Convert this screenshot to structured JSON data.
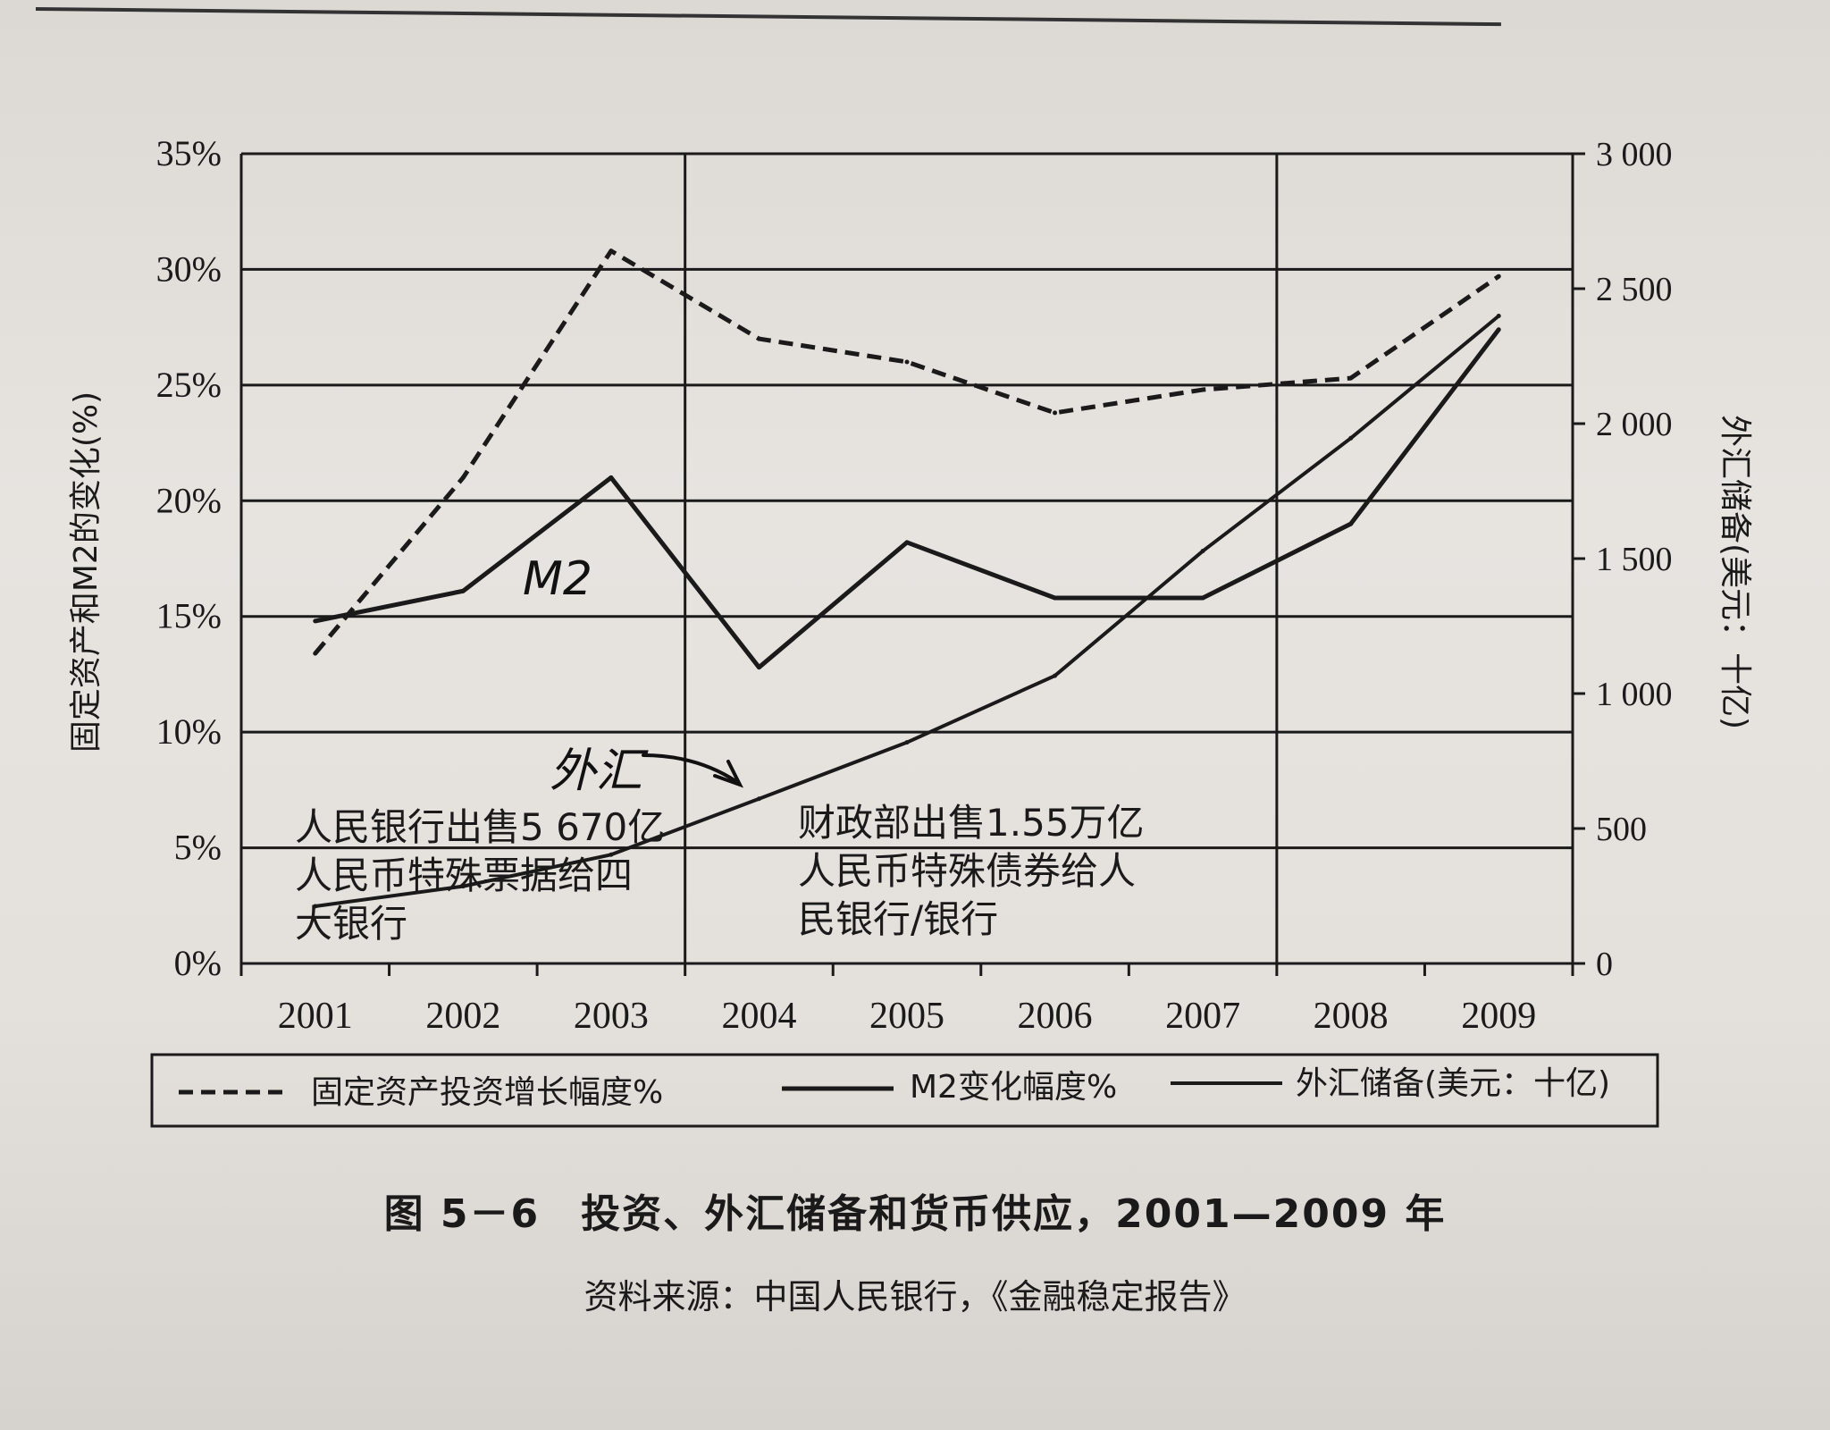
{
  "figure": {
    "caption": "图 5－6　投资、外汇储备和货币供应，2001—2009 年",
    "source": "资料来源：中国人民银行，《金融稳定报告》"
  },
  "chart_data": {
    "type": "line",
    "categories": [
      "2001",
      "2002",
      "2003",
      "2004",
      "2005",
      "2006",
      "2007",
      "2008",
      "2009"
    ],
    "ylabel": "固定资产和M2的变化(%)",
    "y2label": "外汇储备(美元：十亿)",
    "ylim": [
      0,
      35
    ],
    "y_ticks": [
      "35%",
      "30%",
      "25%",
      "20%",
      "15%",
      "10%",
      "5%",
      "0%"
    ],
    "y2lim": [
      0,
      3000
    ],
    "y2_ticks": [
      "3 000",
      "2 500",
      "2 000",
      "1 500",
      "1 000",
      "500",
      "0"
    ],
    "grid": true,
    "legend_position": "bottom",
    "series": [
      {
        "name": "固定资产投资增长幅度%",
        "axis": "left",
        "style": "dashed",
        "values": [
          13.4,
          21.0,
          30.8,
          27.0,
          26.0,
          23.8,
          24.8,
          25.3,
          29.7
        ]
      },
      {
        "name": "M2变化幅度%",
        "axis": "left",
        "style": "solid",
        "values": [
          14.8,
          16.1,
          21.0,
          12.8,
          18.2,
          15.8,
          15.8,
          19.0,
          27.4
        ]
      },
      {
        "name": "外汇储备(美元：十亿)",
        "axis": "right",
        "style": "solid",
        "values": [
          212,
          286,
          403,
          610,
          819,
          1066,
          1528,
          1946,
          2399
        ]
      }
    ],
    "annotations": [
      {
        "id": "pboc",
        "lines": [
          "人民银行出售5 670亿",
          "人民币特殊票据给四",
          "大银行"
        ]
      },
      {
        "id": "mof",
        "lines": [
          "财政部出售1.55万亿",
          "人民币特殊债券给人",
          "民银行/银行"
        ]
      }
    ],
    "handwritten_labels": {
      "m2": "M2",
      "fx": "外汇",
      "fx_arrow": "arrow-icon"
    }
  }
}
